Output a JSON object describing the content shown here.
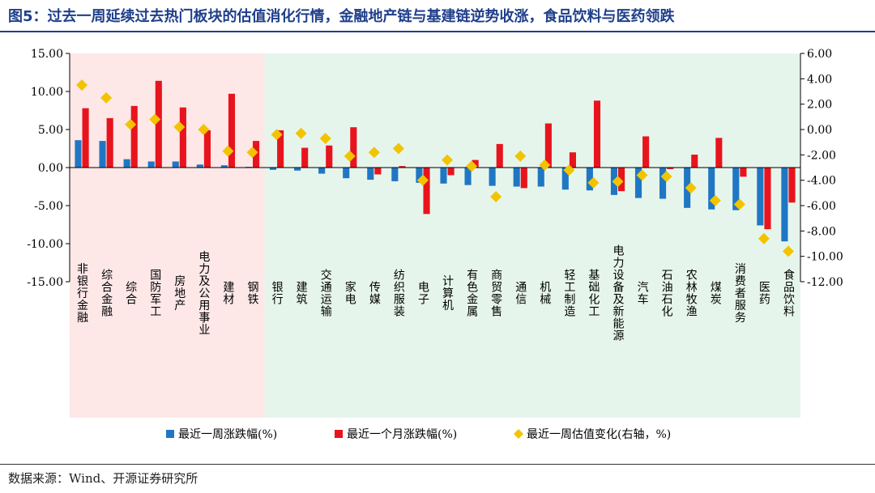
{
  "title": "图5：过去一周延续过去热门板块的估值消化行情，金融地产链与基建链逆势收涨，食品饮料与医药领跌",
  "source": "数据来源：Wind、开源证券研究所",
  "colors": {
    "weekly": "#1f77c4",
    "monthly": "#e8141d",
    "valuation": "#f2c400",
    "hot_bg": "#fde7e7",
    "other_bg": "#e6f5ec"
  },
  "chart_data": {
    "type": "bar",
    "title": "",
    "xlabel": "",
    "ylabel": "",
    "ylim": [
      -15,
      15
    ],
    "yticks": [
      "15.00",
      "10.00",
      "5.00",
      "0.00",
      "-5.00",
      "-10.00",
      "-15.00"
    ],
    "y2lim": [
      -12,
      6
    ],
    "y2ticks": [
      "6.00",
      "4.00",
      "2.00",
      "0.00",
      "-2.00",
      "-4.00",
      "-6.00",
      "-8.00",
      "-10.00",
      "-12.00"
    ],
    "legend_position": "bottom",
    "hot_group_count": 8,
    "categories": [
      "非银行金融",
      "综合金融",
      "综合",
      "国防军工",
      "房地产",
      "电力及公用事业",
      "建材",
      "钢铁",
      "银行",
      "建筑",
      "交通运输",
      "家电",
      "传媒",
      "纺织服装",
      "电子",
      "计算机",
      "有色金属",
      "商贸零售",
      "通信",
      "机械",
      "轻工制造",
      "基础化工",
      "电力设备及新能源",
      "汽车",
      "石油石化",
      "农林牧渔",
      "煤炭",
      "消费者服务",
      "医药",
      "食品饮料"
    ],
    "series": [
      {
        "name": "最近一周涨跌幅(%)",
        "kind": "bar",
        "axis": "left",
        "values": [
          3.6,
          3.5,
          1.1,
          0.8,
          0.8,
          0.4,
          0.3,
          0.1,
          -0.3,
          -0.4,
          -0.8,
          -1.4,
          -1.6,
          -1.8,
          -2.0,
          -2.1,
          -2.3,
          -2.4,
          -2.5,
          -2.5,
          -2.9,
          -3.0,
          -3.6,
          -4.0,
          -4.1,
          -5.3,
          -5.5,
          -5.6,
          -7.6,
          -9.7
        ]
      },
      {
        "name": "最近一个月涨跌幅(%)",
        "kind": "bar",
        "axis": "left",
        "values": [
          7.8,
          6.5,
          8.1,
          11.4,
          7.9,
          4.9,
          9.7,
          3.5,
          4.9,
          2.6,
          2.9,
          5.3,
          -0.9,
          0.2,
          -6.1,
          -1.0,
          1.0,
          3.1,
          -2.7,
          5.8,
          2.0,
          8.8,
          -3.1,
          4.1,
          -0.2,
          1.7,
          3.9,
          -1.2,
          -8.1,
          -4.6
        ]
      },
      {
        "name": "最近一周估值变化(右轴，%)",
        "kind": "scatter",
        "axis": "right",
        "values": [
          3.5,
          2.5,
          0.4,
          0.8,
          0.2,
          0.0,
          -1.7,
          -1.8,
          -0.4,
          -0.3,
          -0.7,
          -2.1,
          -1.8,
          -1.5,
          -4.0,
          -2.4,
          -2.9,
          -5.3,
          -2.1,
          -2.8,
          -3.2,
          -4.2,
          -4.1,
          -3.6,
          -3.7,
          -4.6,
          -5.6,
          -5.9,
          -8.6,
          -9.6
        ]
      }
    ]
  }
}
